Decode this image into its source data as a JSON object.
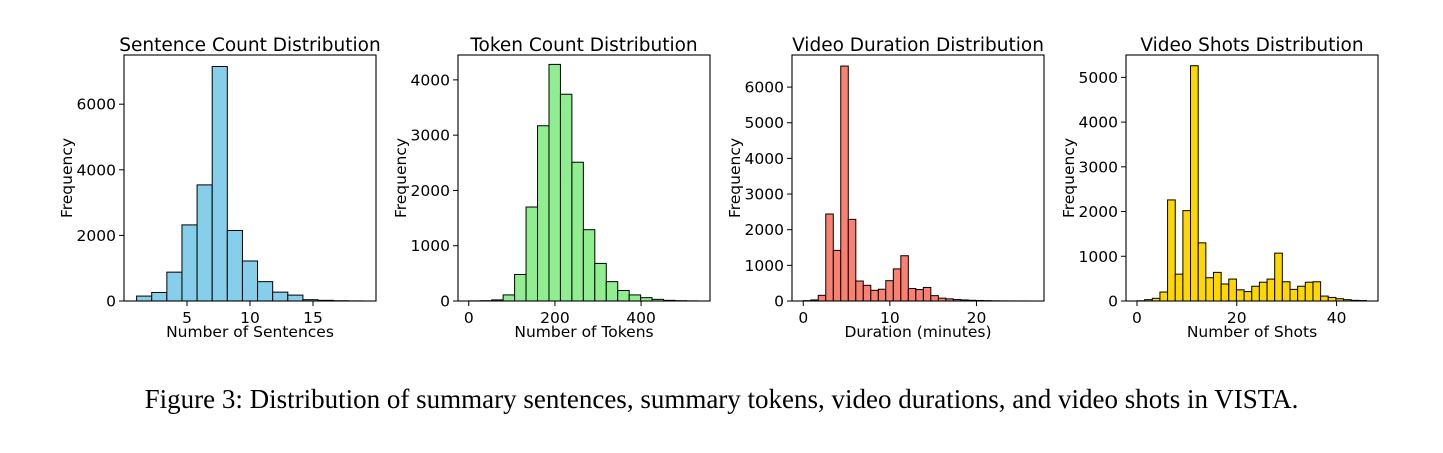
{
  "caption": "Figure 3: Distribution of summary sentences, summary tokens, video durations, and video shots in VISTA.",
  "chart_data": [
    {
      "type": "bar",
      "title": "Sentence Count Distribution",
      "xlabel": "Number of Sentences",
      "ylabel": "Frequency",
      "color": "#87CEEB",
      "xlim": [
        0,
        20
      ],
      "ylim": [
        0,
        7500
      ],
      "xticks": [
        5,
        10,
        15
      ],
      "yticks": [
        0,
        2000,
        4000,
        6000
      ],
      "bins": [
        {
          "x0": 1,
          "x1": 2.2,
          "value": 150
        },
        {
          "x0": 2.2,
          "x1": 3.4,
          "value": 260
        },
        {
          "x0": 3.4,
          "x1": 4.6,
          "value": 880
        },
        {
          "x0": 4.6,
          "x1": 5.8,
          "value": 2320
        },
        {
          "x0": 5.8,
          "x1": 7,
          "value": 3540
        },
        {
          "x0": 7,
          "x1": 8.2,
          "value": 7150
        },
        {
          "x0": 8.2,
          "x1": 9.4,
          "value": 2150
        },
        {
          "x0": 9.4,
          "x1": 10.6,
          "value": 1220
        },
        {
          "x0": 10.6,
          "x1": 11.8,
          "value": 590
        },
        {
          "x0": 11.8,
          "x1": 13,
          "value": 270
        },
        {
          "x0": 13,
          "x1": 14.2,
          "value": 180
        },
        {
          "x0": 14.2,
          "x1": 15.4,
          "value": 40
        },
        {
          "x0": 15.4,
          "x1": 16.6,
          "value": 20
        },
        {
          "x0": 16.6,
          "x1": 17.8,
          "value": 8
        },
        {
          "x0": 17.8,
          "x1": 19,
          "value": 3
        }
      ]
    },
    {
      "type": "bar",
      "title": "Token Count Distribution",
      "xlabel": "Number of Tokens",
      "ylabel": "Frequency",
      "color": "#90EE90",
      "xlim": [
        -25,
        560
      ],
      "ylim": [
        0,
        4450
      ],
      "xticks": [
        0,
        200,
        400
      ],
      "yticks": [
        0,
        1000,
        2000,
        3000,
        4000
      ],
      "bins": [
        {
          "x0": 0,
          "x1": 26.6,
          "value": 2
        },
        {
          "x0": 26.6,
          "x1": 53.2,
          "value": 5
        },
        {
          "x0": 53.2,
          "x1": 79.8,
          "value": 20
        },
        {
          "x0": 79.8,
          "x1": 106.4,
          "value": 110
        },
        {
          "x0": 106.4,
          "x1": 133,
          "value": 480
        },
        {
          "x0": 133,
          "x1": 159.6,
          "value": 1700
        },
        {
          "x0": 159.6,
          "x1": 186.2,
          "value": 3170
        },
        {
          "x0": 186.2,
          "x1": 212.8,
          "value": 4280
        },
        {
          "x0": 212.8,
          "x1": 239.4,
          "value": 3740
        },
        {
          "x0": 239.4,
          "x1": 266,
          "value": 2510
        },
        {
          "x0": 266,
          "x1": 292.6,
          "value": 1290
        },
        {
          "x0": 292.6,
          "x1": 319.2,
          "value": 680
        },
        {
          "x0": 319.2,
          "x1": 345.8,
          "value": 350
        },
        {
          "x0": 345.8,
          "x1": 372.4,
          "value": 190
        },
        {
          "x0": 372.4,
          "x1": 399,
          "value": 110
        },
        {
          "x0": 399,
          "x1": 425.6,
          "value": 60
        },
        {
          "x0": 425.6,
          "x1": 452.2,
          "value": 30
        },
        {
          "x0": 452.2,
          "x1": 478.8,
          "value": 12
        },
        {
          "x0": 478.8,
          "x1": 505.4,
          "value": 5
        },
        {
          "x0": 505.4,
          "x1": 532,
          "value": 2
        }
      ]
    },
    {
      "type": "bar",
      "title": "Video Duration Distribution",
      "xlabel": "Duration (minutes)",
      "ylabel": "Frequency",
      "color": "#FA8072",
      "xlim": [
        -1.3,
        27.8
      ],
      "ylim": [
        0,
        6900
      ],
      "xticks": [
        0,
        10,
        20
      ],
      "yticks": [
        0,
        1000,
        2000,
        3000,
        4000,
        5000,
        6000
      ],
      "bins": [
        {
          "x0": 0,
          "x1": 0.87,
          "value": 10
        },
        {
          "x0": 0.87,
          "x1": 1.73,
          "value": 30
        },
        {
          "x0": 1.73,
          "x1": 2.6,
          "value": 160
        },
        {
          "x0": 2.6,
          "x1": 3.47,
          "value": 2440
        },
        {
          "x0": 3.47,
          "x1": 4.33,
          "value": 1420
        },
        {
          "x0": 4.33,
          "x1": 5.2,
          "value": 6590
        },
        {
          "x0": 5.2,
          "x1": 6.07,
          "value": 2290
        },
        {
          "x0": 6.07,
          "x1": 6.93,
          "value": 560
        },
        {
          "x0": 6.93,
          "x1": 7.8,
          "value": 440
        },
        {
          "x0": 7.8,
          "x1": 8.67,
          "value": 300
        },
        {
          "x0": 8.67,
          "x1": 9.53,
          "value": 330
        },
        {
          "x0": 9.53,
          "x1": 10.4,
          "value": 570
        },
        {
          "x0": 10.4,
          "x1": 11.27,
          "value": 900
        },
        {
          "x0": 11.27,
          "x1": 12.13,
          "value": 1270
        },
        {
          "x0": 12.13,
          "x1": 13,
          "value": 350
        },
        {
          "x0": 13,
          "x1": 13.87,
          "value": 320
        },
        {
          "x0": 13.87,
          "x1": 14.73,
          "value": 380
        },
        {
          "x0": 14.73,
          "x1": 15.6,
          "value": 150
        },
        {
          "x0": 15.6,
          "x1": 16.47,
          "value": 80
        },
        {
          "x0": 16.47,
          "x1": 17.33,
          "value": 60
        },
        {
          "x0": 17.33,
          "x1": 18.2,
          "value": 40
        },
        {
          "x0": 18.2,
          "x1": 19.07,
          "value": 30
        },
        {
          "x0": 19.07,
          "x1": 19.93,
          "value": 20
        },
        {
          "x0": 19.93,
          "x1": 20.8,
          "value": 15
        },
        {
          "x0": 20.8,
          "x1": 21.67,
          "value": 10
        },
        {
          "x0": 21.67,
          "x1": 22.53,
          "value": 5
        },
        {
          "x0": 22.53,
          "x1": 23.4,
          "value": 3
        },
        {
          "x0": 23.4,
          "x1": 24.27,
          "value": 2
        },
        {
          "x0": 24.27,
          "x1": 25.13,
          "value": 1
        },
        {
          "x0": 25.13,
          "x1": 26,
          "value": 1
        }
      ]
    },
    {
      "type": "bar",
      "title": "Video Shots Distribution",
      "xlabel": "Number of Shots",
      "ylabel": "Frequency",
      "color": "#FFD700",
      "xlim": [
        -2.2,
        48.3
      ],
      "ylim": [
        0,
        5500
      ],
      "xticks": [
        0,
        20,
        40
      ],
      "yticks": [
        0,
        1000,
        2000,
        3000,
        4000,
        5000
      ],
      "bins": [
        {
          "x0": 0,
          "x1": 1.53,
          "value": 5
        },
        {
          "x0": 1.53,
          "x1": 3.07,
          "value": 30
        },
        {
          "x0": 3.07,
          "x1": 4.6,
          "value": 60
        },
        {
          "x0": 4.6,
          "x1": 6.13,
          "value": 200
        },
        {
          "x0": 6.13,
          "x1": 7.67,
          "value": 2260
        },
        {
          "x0": 7.67,
          "x1": 9.2,
          "value": 600
        },
        {
          "x0": 9.2,
          "x1": 10.73,
          "value": 2020
        },
        {
          "x0": 10.73,
          "x1": 12.27,
          "value": 5260
        },
        {
          "x0": 12.27,
          "x1": 13.8,
          "value": 1300
        },
        {
          "x0": 13.8,
          "x1": 15.33,
          "value": 520
        },
        {
          "x0": 15.33,
          "x1": 16.87,
          "value": 640
        },
        {
          "x0": 16.87,
          "x1": 18.4,
          "value": 380
        },
        {
          "x0": 18.4,
          "x1": 19.93,
          "value": 490
        },
        {
          "x0": 19.93,
          "x1": 21.47,
          "value": 250
        },
        {
          "x0": 21.47,
          "x1": 23,
          "value": 210
        },
        {
          "x0": 23,
          "x1": 24.53,
          "value": 330
        },
        {
          "x0": 24.53,
          "x1": 26.07,
          "value": 420
        },
        {
          "x0": 26.07,
          "x1": 27.6,
          "value": 490
        },
        {
          "x0": 27.6,
          "x1": 29.13,
          "value": 1070
        },
        {
          "x0": 29.13,
          "x1": 30.67,
          "value": 430
        },
        {
          "x0": 30.67,
          "x1": 32.2,
          "value": 260
        },
        {
          "x0": 32.2,
          "x1": 33.73,
          "value": 330
        },
        {
          "x0": 33.73,
          "x1": 35.27,
          "value": 420
        },
        {
          "x0": 35.27,
          "x1": 36.8,
          "value": 430
        },
        {
          "x0": 36.8,
          "x1": 38.33,
          "value": 110
        },
        {
          "x0": 38.33,
          "x1": 39.87,
          "value": 80
        },
        {
          "x0": 39.87,
          "x1": 41.4,
          "value": 50
        },
        {
          "x0": 41.4,
          "x1": 42.93,
          "value": 30
        },
        {
          "x0": 42.93,
          "x1": 44.47,
          "value": 15
        },
        {
          "x0": 44.47,
          "x1": 46,
          "value": 10
        }
      ]
    }
  ]
}
